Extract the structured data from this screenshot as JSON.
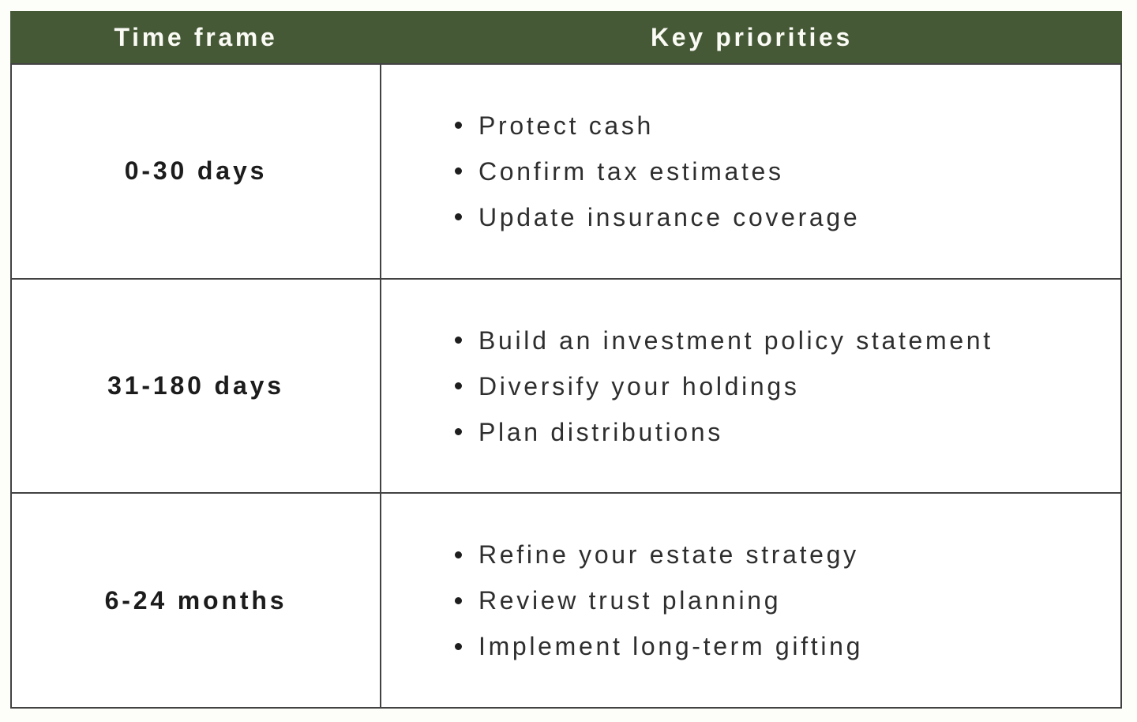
{
  "table": {
    "headers": [
      "Time frame",
      "Key priorities"
    ],
    "rows": [
      {
        "time_frame": "0-30 days",
        "priorities": [
          "Protect cash",
          "Confirm tax estimates",
          "Update insurance coverage"
        ]
      },
      {
        "time_frame": "31-180 days",
        "priorities": [
          "Build an investment policy statement",
          "Diversify your holdings",
          "Plan distributions"
        ]
      },
      {
        "time_frame": "6-24 months",
        "priorities": [
          "Refine your estate strategy",
          "Review trust planning",
          "Implement long-term gifting"
        ]
      }
    ]
  },
  "colors": {
    "header_bg": "#465937",
    "header_text": "#fbfbf5",
    "border": "#424242",
    "cell_bg": "#ffffff",
    "page_bg": "#fdfdf9",
    "body_text": "#2e2e2e"
  }
}
